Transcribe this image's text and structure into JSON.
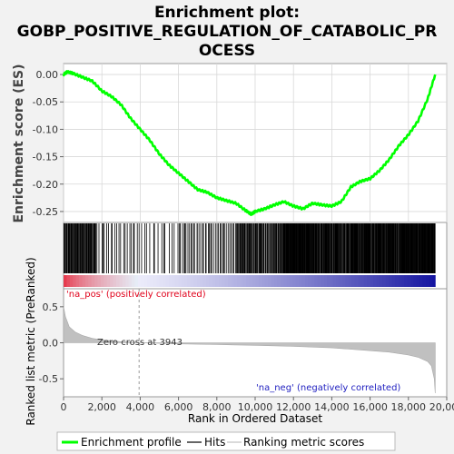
{
  "chart_data": {
    "type": "line",
    "title_lines": [
      "Enrichment plot:",
      "GOBP_POSITIVE_REGULATION_OF_CATABOLIC_PR",
      "OCESS"
    ],
    "xlabel": "Rank in Ordered Dataset",
    "ylabel_es": "Enrichment score (ES)",
    "ylabel_metric": "Ranked list metric (PreRanked)",
    "xlim": [
      0,
      20000
    ],
    "x_ticks": [
      0,
      2000,
      4000,
      6000,
      8000,
      10000,
      12000,
      14000,
      16000,
      18000,
      20000
    ],
    "x_tick_labels": [
      "0",
      "2,000",
      "4,000",
      "6,000",
      "8,000",
      "10,000",
      "12,000",
      "14,000",
      "16,000",
      "18,000",
      "20,000"
    ],
    "es_ylim": [
      -0.27,
      0.02
    ],
    "es_ticks": [
      0.0,
      -0.05,
      -0.1,
      -0.15,
      -0.2,
      -0.25
    ],
    "es_tick_labels": [
      "0.00",
      "-0.05",
      "-0.10",
      "-0.15",
      "-0.20",
      "-0.25"
    ],
    "metric_ylim": [
      -0.75,
      0.75
    ],
    "metric_ticks": [
      0.5,
      0.0,
      -0.5
    ],
    "metric_tick_labels": [
      "0.5",
      "0.0",
      "-0.5"
    ],
    "n_genes": 19400,
    "zero_cross_rank": 3943,
    "zero_cross_label": "Zero cross at 3943",
    "pos_label": "'na_pos' (positively correlated)",
    "neg_label": "'na_neg' (negatively correlated)",
    "series": [
      {
        "name": "Enrichment profile",
        "color": "#00ff00",
        "x": [
          0,
          200,
          500,
          1000,
          1500,
          2000,
          2500,
          3000,
          3500,
          4000,
          4500,
          5000,
          5500,
          6000,
          6500,
          7000,
          7500,
          8000,
          8500,
          9000,
          9500,
          9800,
          10000,
          10500,
          11000,
          11500,
          12000,
          12500,
          13000,
          13500,
          14000,
          14500,
          15000,
          15500,
          16000,
          16500,
          17000,
          17500,
          18000,
          18500,
          19000,
          19400
        ],
        "y": [
          0.0,
          0.005,
          0.002,
          -0.005,
          -0.012,
          -0.03,
          -0.04,
          -0.055,
          -0.08,
          -0.1,
          -0.12,
          -0.145,
          -0.165,
          -0.18,
          -0.195,
          -0.21,
          -0.215,
          -0.225,
          -0.23,
          -0.235,
          -0.248,
          -0.255,
          -0.25,
          -0.245,
          -0.238,
          -0.232,
          -0.24,
          -0.245,
          -0.235,
          -0.238,
          -0.24,
          -0.232,
          -0.205,
          -0.195,
          -0.19,
          -0.175,
          -0.155,
          -0.13,
          -0.11,
          -0.085,
          -0.045,
          0.0
        ]
      },
      {
        "name": "Ranking metric scores",
        "color": "#c0c0c0",
        "x": [
          0,
          100,
          300,
          600,
          1000,
          1500,
          2000,
          3000,
          3943,
          6000,
          8000,
          10000,
          12000,
          14000,
          16000,
          17000,
          18000,
          18500,
          19000,
          19200,
          19350,
          19400
        ],
        "y": [
          0.5,
          0.36,
          0.22,
          0.15,
          0.1,
          0.06,
          0.04,
          0.015,
          0.0,
          -0.015,
          -0.025,
          -0.035,
          -0.05,
          -0.07,
          -0.11,
          -0.13,
          -0.17,
          -0.2,
          -0.26,
          -0.32,
          -0.5,
          -0.7
        ]
      }
    ],
    "hits_series_name": "Hits",
    "hits_color": "#000000",
    "hits_rank_segments": [
      [
        0,
        1700,
        55
      ],
      [
        1700,
        4000,
        22
      ],
      [
        4000,
        6000,
        14
      ],
      [
        6000,
        9000,
        40
      ],
      [
        9000,
        11500,
        70
      ],
      [
        11500,
        13000,
        75
      ],
      [
        13000,
        14800,
        70
      ],
      [
        14800,
        17500,
        110
      ],
      [
        17500,
        19400,
        95
      ]
    ],
    "legend": {
      "position": "bottom",
      "items": [
        {
          "label": "Enrichment profile",
          "color": "#00ff00"
        },
        {
          "label": "Hits",
          "color": "#000000"
        },
        {
          "label": "Ranking metric scores",
          "color": "#c0c0c0"
        }
      ]
    }
  }
}
